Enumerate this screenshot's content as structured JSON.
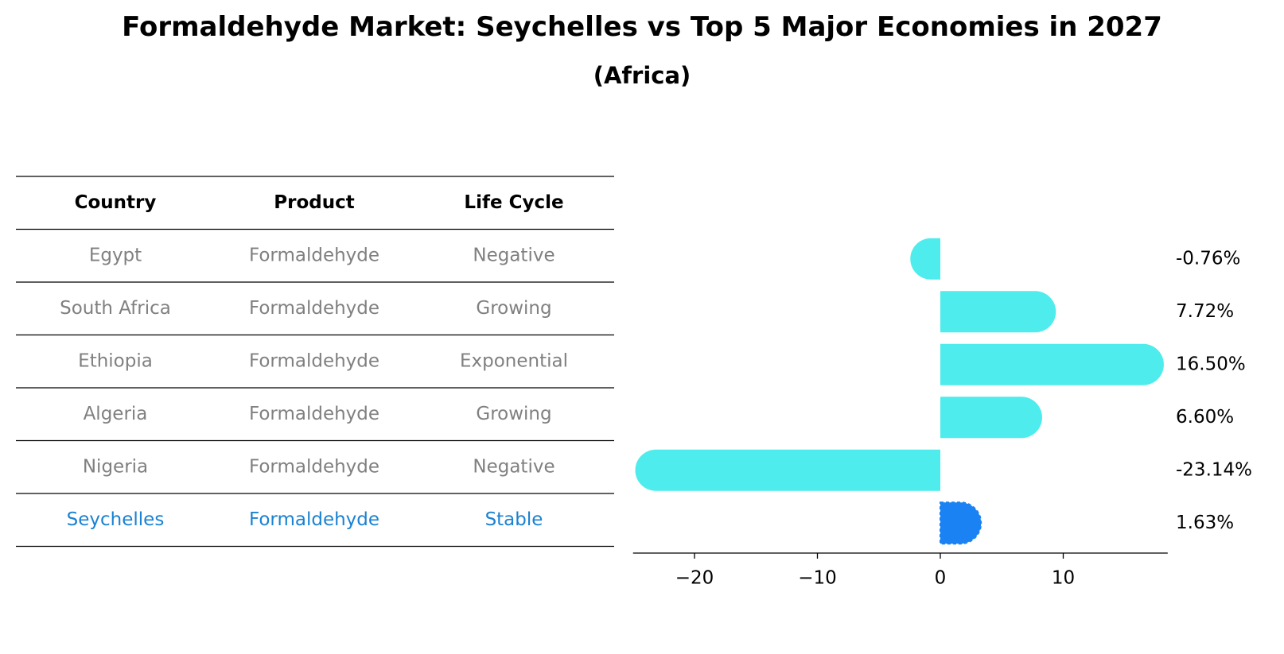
{
  "title": "Formaldehyde Market: Seychelles vs Top 5 Major Economies in 2027",
  "subtitle": "(Africa)",
  "colors": {
    "bar": "#4EECEC",
    "highlight_bar": "#1A82F3",
    "highlight_text": "#1A82D2",
    "row_text": "#808080",
    "header_text": "#000000"
  },
  "table": {
    "headers": [
      "Country",
      "Product",
      "Life Cycle"
    ],
    "rows": [
      {
        "country": "Egypt",
        "product": "Formaldehyde",
        "life_cycle": "Negative",
        "highlight": false
      },
      {
        "country": "South Africa",
        "product": "Formaldehyde",
        "life_cycle": "Growing",
        "highlight": false
      },
      {
        "country": "Ethiopia",
        "product": "Formaldehyde",
        "life_cycle": "Exponential",
        "highlight": false
      },
      {
        "country": "Algeria",
        "product": "Formaldehyde",
        "life_cycle": "Growing",
        "highlight": false
      },
      {
        "country": "Nigeria",
        "product": "Formaldehyde",
        "life_cycle": "Negative",
        "highlight": false
      },
      {
        "country": "Seychelles",
        "product": "Formaldehyde",
        "life_cycle": "Stable",
        "highlight": true
      }
    ]
  },
  "chart_data": {
    "type": "bar",
    "orientation": "horizontal",
    "title": "Formaldehyde Market: Seychelles vs Top 5 Major Economies in 2027",
    "subtitle": "(Africa)",
    "categories": [
      "Egypt",
      "South Africa",
      "Ethiopia",
      "Algeria",
      "Nigeria",
      "Seychelles"
    ],
    "values": [
      -0.76,
      7.72,
      16.5,
      6.6,
      -23.14,
      1.63
    ],
    "value_labels": [
      "-0.76%",
      "7.72%",
      "16.50%",
      "6.60%",
      "-23.14%",
      "1.63%"
    ],
    "highlight_category": "Seychelles",
    "xlim": [
      -25,
      18.5
    ],
    "xticks": [
      -20,
      -10,
      0,
      10
    ],
    "xtick_labels": [
      "−20",
      "−10",
      "0",
      "10"
    ],
    "xlabel": "",
    "ylabel": "",
    "grid": false
  }
}
